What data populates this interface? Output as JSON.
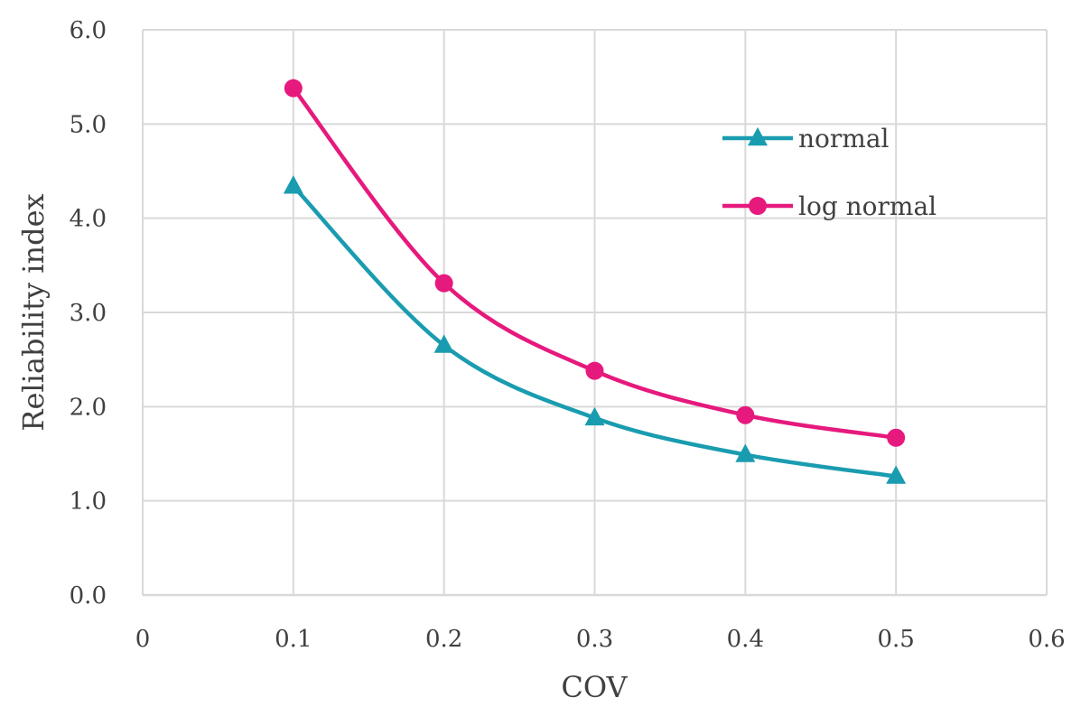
{
  "chart_data": {
    "type": "line",
    "xlabel": "COV",
    "ylabel": "Reliability index",
    "xlim": [
      0,
      0.6
    ],
    "ylim": [
      0,
      6
    ],
    "x_ticks": [
      0,
      0.1,
      0.2,
      0.3,
      0.4,
      0.5,
      0.6
    ],
    "x_tick_labels": [
      "0",
      "0.1",
      "0.2",
      "0.3",
      "0.4",
      "0.5",
      "0.6"
    ],
    "y_ticks": [
      0,
      1,
      2,
      3,
      4,
      5,
      6
    ],
    "y_tick_labels": [
      "0.0",
      "1.0",
      "2.0",
      "3.0",
      "4.0",
      "5.0",
      "6.0"
    ],
    "grid": true,
    "legend_position": "right, inside plot",
    "x": [
      0.1,
      0.2,
      0.3,
      0.4,
      0.5
    ],
    "series": [
      {
        "name": "normal",
        "values": [
          4.34,
          2.65,
          1.88,
          1.49,
          1.26
        ],
        "color": "#1a9cb0",
        "marker": "triangle"
      },
      {
        "name": "log normal",
        "values": [
          5.38,
          3.31,
          2.38,
          1.91,
          1.67
        ],
        "color": "#e6197d",
        "marker": "circle"
      }
    ]
  }
}
